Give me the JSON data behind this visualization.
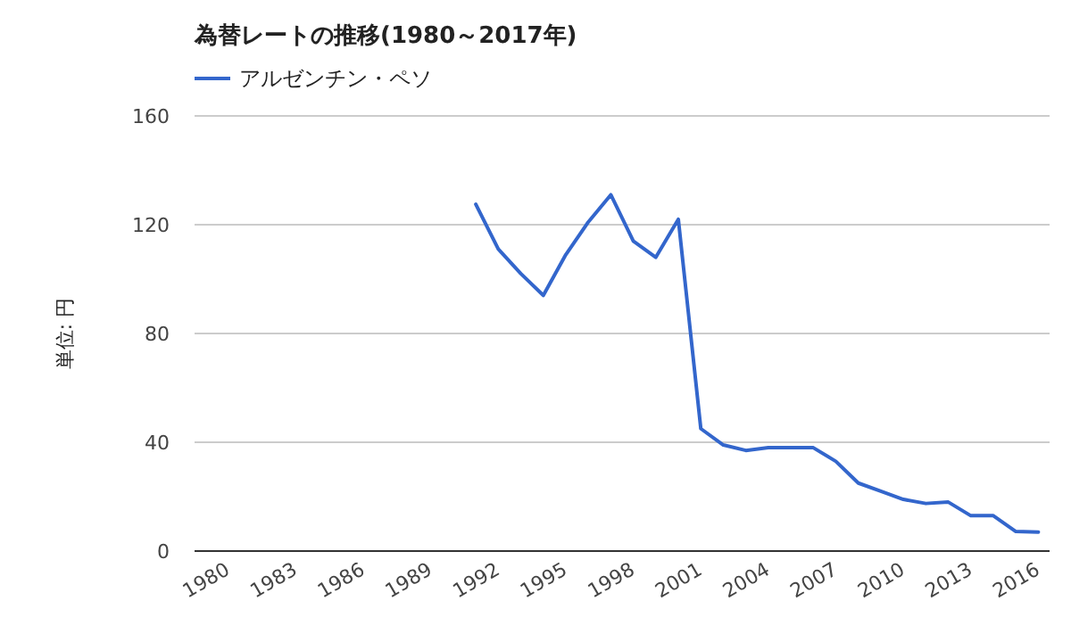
{
  "chart_data": {
    "type": "line",
    "title": "為替レートの推移(1980～2017年)",
    "ylabel": "単位: 円",
    "categories": [
      "1980",
      null,
      null,
      "1983",
      null,
      null,
      "1986",
      null,
      null,
      "1989",
      null,
      null,
      "1992",
      null,
      null,
      "1995",
      null,
      null,
      "1998",
      null,
      null,
      "2001",
      null,
      null,
      "2004",
      null,
      null,
      "2007",
      null,
      null,
      "2010",
      null,
      null,
      "2013",
      null,
      null,
      "2016",
      null
    ],
    "series": [
      {
        "name": "アルゼンチン・ペソ",
        "color": "#3366cc",
        "values": [
          null,
          null,
          null,
          null,
          null,
          null,
          null,
          null,
          null,
          null,
          null,
          null,
          127.5,
          111,
          102,
          94,
          109,
          121,
          131,
          114,
          108,
          122,
          45,
          39,
          37,
          38,
          38,
          38,
          33,
          25,
          22,
          19,
          17.5,
          18,
          13,
          13,
          7.2,
          7
        ]
      }
    ],
    "ylim": [
      0,
      160
    ],
    "yticks": [
      0,
      40,
      80,
      120,
      160
    ],
    "grid": "y",
    "legend": "top left"
  }
}
